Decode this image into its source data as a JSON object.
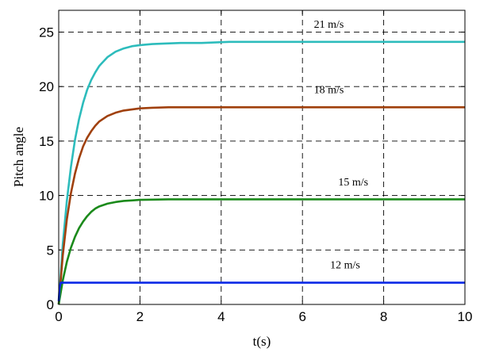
{
  "chart_data": {
    "type": "line",
    "title": "",
    "xlabel": "t(s)",
    "ylabel": "Pitch angle",
    "xlim": [
      0,
      10
    ],
    "ylim": [
      0,
      27
    ],
    "xticks": [
      0,
      2,
      4,
      6,
      8,
      10
    ],
    "yticks": [
      0,
      5,
      10,
      15,
      20,
      25
    ],
    "grid": true,
    "series": [
      {
        "name": "21 m/s",
        "color": "#2dbcbc",
        "x": [
          0,
          0.1,
          0.2,
          0.3,
          0.4,
          0.5,
          0.6,
          0.7,
          0.8,
          0.9,
          1.0,
          1.2,
          1.4,
          1.6,
          1.8,
          2.0,
          2.3,
          2.6,
          3.0,
          3.5,
          4.2,
          5,
          6,
          7,
          8,
          9,
          10
        ],
        "y": [
          0,
          5.5,
          9.5,
          12.6,
          15.1,
          17.0,
          18.5,
          19.7,
          20.6,
          21.3,
          21.9,
          22.7,
          23.2,
          23.5,
          23.7,
          23.8,
          23.9,
          23.95,
          24.0,
          24.0,
          24.1,
          24.1,
          24.1,
          24.1,
          24.1,
          24.1,
          24.1
        ]
      },
      {
        "name": "18 m/s",
        "color": "#a0400c",
        "x": [
          0,
          0.1,
          0.2,
          0.3,
          0.4,
          0.5,
          0.6,
          0.7,
          0.8,
          0.9,
          1.0,
          1.2,
          1.4,
          1.6,
          1.8,
          2.0,
          2.3,
          2.7,
          3,
          4,
          5,
          6,
          7,
          8,
          9,
          10
        ],
        "y": [
          0,
          4.5,
          7.8,
          10.2,
          12.0,
          13.4,
          14.5,
          15.3,
          15.9,
          16.4,
          16.8,
          17.3,
          17.6,
          17.8,
          17.9,
          18.0,
          18.05,
          18.1,
          18.1,
          18.1,
          18.1,
          18.1,
          18.1,
          18.1,
          18.1,
          18.1
        ]
      },
      {
        "name": "15 m/s",
        "color": "#1b8a1b",
        "x": [
          0,
          0.1,
          0.2,
          0.3,
          0.4,
          0.5,
          0.6,
          0.7,
          0.8,
          0.9,
          1.0,
          1.2,
          1.4,
          1.6,
          1.8,
          2.0,
          2.3,
          2.7,
          3,
          4,
          5,
          6,
          7,
          8,
          9,
          10
        ],
        "y": [
          0,
          2.2,
          3.9,
          5.2,
          6.2,
          7.0,
          7.6,
          8.1,
          8.5,
          8.8,
          9.0,
          9.25,
          9.4,
          9.5,
          9.55,
          9.6,
          9.62,
          9.65,
          9.65,
          9.65,
          9.65,
          9.65,
          9.65,
          9.65,
          9.65,
          9.65
        ]
      },
      {
        "name": "12 m/s",
        "color": "#0a28e6",
        "x": [
          0,
          0.02,
          0.05,
          10
        ],
        "y": [
          0.3,
          1.5,
          2.0,
          2.0
        ]
      }
    ],
    "annotations": [
      {
        "text": "21 m/s",
        "x": 6.65,
        "y": 25.4
      },
      {
        "text": "18 m/s",
        "x": 6.65,
        "y": 19.4
      },
      {
        "text": "15 m/s",
        "x": 7.25,
        "y": 10.9
      },
      {
        "text": "12 m/s",
        "x": 7.05,
        "y": 3.3
      }
    ]
  }
}
